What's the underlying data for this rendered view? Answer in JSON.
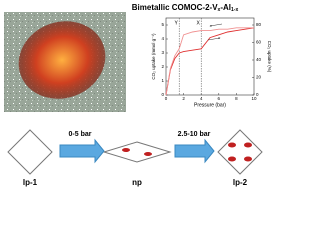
{
  "title": {
    "parts": [
      "Bimetallic COMOC-2-V",
      "x",
      "-Al",
      "1-x"
    ]
  },
  "chart_data": {
    "type": "line",
    "xlabel": "Pressure (bar)",
    "ylabel": "CO₂ uptake (mmol g⁻¹)",
    "y2label": "CO₂ uptake (%)",
    "x": [
      0,
      0.5,
      1,
      1.5,
      2,
      3,
      4,
      5,
      6,
      7,
      8,
      9,
      10
    ],
    "series": [
      {
        "color": "#e03030",
        "values": [
          0,
          1.8,
          2.6,
          3.0,
          3.1,
          3.2,
          3.3,
          4.1,
          4.3,
          4.5,
          4.6,
          4.7,
          4.8
        ]
      },
      {
        "color": "#f09090",
        "values": [
          0,
          1.9,
          2.8,
          3.3,
          4.3,
          4.5,
          4.6,
          4.6,
          4.7,
          4.7,
          4.8,
          4.8,
          4.8
        ]
      }
    ],
    "xlim": [
      0,
      10
    ],
    "xticks": [
      0,
      2,
      4,
      6,
      8,
      10
    ],
    "ylim": [
      0,
      5.5
    ],
    "yticks": [
      0,
      1,
      2,
      3,
      4,
      5
    ],
    "y2lim": [
      0,
      88
    ],
    "y2ticks": [
      0,
      20,
      40,
      60,
      80
    ],
    "annotations": [
      {
        "label": "Y",
        "x": 1.5
      },
      {
        "label": "X",
        "x": 4
      }
    ]
  },
  "diagram": {
    "stages": [
      "lp-1",
      "np",
      "lp-2"
    ],
    "steps": [
      "0-5 bar",
      "2.5-10 bar"
    ]
  }
}
